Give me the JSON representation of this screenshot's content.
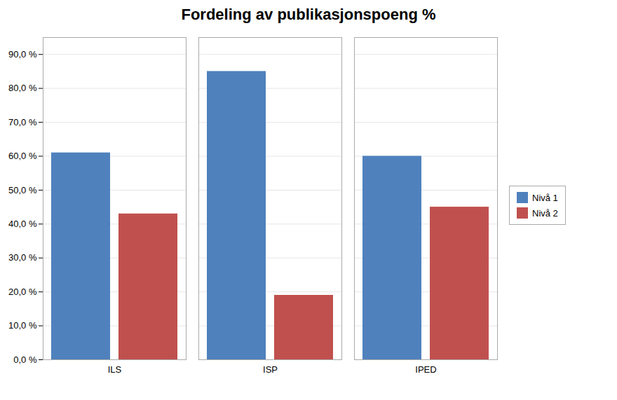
{
  "chart_data": {
    "type": "bar",
    "title": "Fordeling av publikasjonspoeng %",
    "categories": [
      "ILS",
      "ISP",
      "IPED"
    ],
    "series": [
      {
        "name": "Nivå 1",
        "color": "#4F81BD",
        "values": [
          0.61,
          0.85,
          0.6
        ]
      },
      {
        "name": "Nivå 2",
        "color": "#C0504D",
        "values": [
          0.43,
          0.19,
          0.45
        ]
      }
    ],
    "ylim": [
      0.0,
      0.95
    ],
    "yticks": [
      {
        "value": 0.0,
        "label": "0,0 %"
      },
      {
        "value": 0.1,
        "label": "10,0 %"
      },
      {
        "value": 0.2,
        "label": "20,0 %"
      },
      {
        "value": 0.3,
        "label": "30,0 %"
      },
      {
        "value": 0.4,
        "label": "40,0 %"
      },
      {
        "value": 0.5,
        "label": "50,0 %"
      },
      {
        "value": 0.6,
        "label": "60,0 %"
      },
      {
        "value": 0.7,
        "label": "70,0 %"
      },
      {
        "value": 0.8,
        "label": "80,0 %"
      },
      {
        "value": 0.9,
        "label": "90,0 %"
      }
    ],
    "grid": true,
    "legend": "right"
  }
}
